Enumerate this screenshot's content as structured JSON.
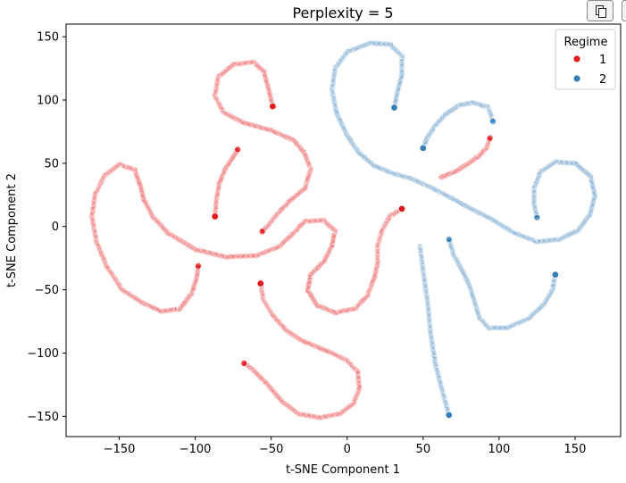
{
  "colors": {
    "regime_1": "#e41a1c",
    "regime_2": "#377eb8",
    "marker_edge": "#ffffff",
    "axis": "#000000"
  },
  "toolbar": {
    "copy_icon": "copy-icon",
    "more_icon": "more-button"
  },
  "chart_data": {
    "type": "scatter",
    "title": "Perplexity = 5",
    "xlabel": "t-SNE Component 1",
    "ylabel": "t-SNE Component 2",
    "xlim": [
      -185,
      180
    ],
    "ylim": [
      -166,
      160
    ],
    "xticks": [
      -150,
      -100,
      -50,
      0,
      50,
      100,
      150
    ],
    "yticks": [
      -150,
      -100,
      -50,
      0,
      50,
      100,
      150
    ],
    "xtick_labels": [
      "−150",
      "−100",
      "−50",
      "0",
      "50",
      "100",
      "150"
    ],
    "ytick_labels": [
      "−150",
      "−100",
      "−50",
      "0",
      "50",
      "100",
      "150"
    ],
    "grid": false,
    "legend": {
      "title": "Regime",
      "position": "top-right",
      "entries": [
        "1",
        "2"
      ]
    },
    "series": [
      {
        "name": "1",
        "color": "#e41a1c",
        "curves": [
          {
            "points": [
              [
                -57,
                -45
              ],
              [
                -55,
                -58
              ],
              [
                -49,
                -70
              ],
              [
                -40,
                -82
              ],
              [
                -30,
                -90
              ],
              [
                -20,
                -95
              ],
              [
                -10,
                -100
              ],
              [
                0,
                -106
              ],
              [
                7,
                -115
              ],
              [
                8,
                -128
              ],
              [
                4,
                -140
              ],
              [
                -5,
                -148
              ],
              [
                -18,
                -151
              ],
              [
                -32,
                -148
              ],
              [
                -43,
                -138
              ],
              [
                -53,
                -124
              ],
              [
                -63,
                -112
              ],
              [
                -68,
                -108
              ]
            ],
            "highlight": [
              -57,
              -45
            ]
          },
          {
            "points": [
              [
                36,
                14
              ],
              [
                28,
                8
              ],
              [
                23,
                -3
              ],
              [
                20,
                -15
              ],
              [
                20,
                -29
              ],
              [
                18,
                -40
              ],
              [
                13,
                -55
              ],
              [
                5,
                -65
              ],
              [
                -8,
                -68
              ],
              [
                -20,
                -62
              ],
              [
                -26,
                -50
              ],
              [
                -24,
                -38
              ],
              [
                -15,
                -27
              ],
              [
                -10,
                -15
              ],
              [
                -8,
                -3
              ],
              [
                -16,
                5
              ],
              [
                -28,
                4
              ],
              [
                -36,
                -6
              ],
              [
                -45,
                -16
              ],
              [
                -60,
                -23
              ],
              [
                -80,
                -24
              ],
              [
                -100,
                -18
              ],
              [
                -118,
                -5
              ],
              [
                -128,
                8
              ],
              [
                -134,
                22
              ],
              [
                -136,
                32
              ],
              [
                -140,
                45
              ],
              [
                -150,
                49
              ],
              [
                -160,
                40
              ],
              [
                -166,
                25
              ],
              [
                -168,
                8
              ],
              [
                -165,
                -12
              ],
              [
                -158,
                -32
              ],
              [
                -148,
                -50
              ],
              [
                -135,
                -60
              ],
              [
                -122,
                -67
              ],
              [
                -110,
                -65
              ],
              [
                -102,
                -52
              ],
              [
                -99,
                -40
              ],
              [
                -98,
                -31
              ]
            ],
            "highlight": [
              36,
              14
            ]
          },
          {
            "points": [
              [
                -49,
                95
              ],
              [
                -52,
                110
              ],
              [
                -55,
                123
              ],
              [
                -62,
                130
              ],
              [
                -75,
                128
              ],
              [
                -85,
                118
              ],
              [
                -87,
                103
              ],
              [
                -81,
                90
              ],
              [
                -68,
                82
              ],
              [
                -50,
                76
              ],
              [
                -35,
                68
              ],
              [
                -28,
                58
              ],
              [
                -24,
                45
              ],
              [
                -28,
                30
              ],
              [
                -38,
                20
              ],
              [
                -46,
                10
              ],
              [
                -52,
                1
              ],
              [
                -56,
                -4
              ]
            ],
            "highlight": [
              -49,
              95
            ]
          },
          {
            "points": [
              [
                -87,
                8
              ],
              [
                -86,
                22
              ],
              [
                -84,
                35
              ],
              [
                -80,
                46
              ],
              [
                -75,
                55
              ],
              [
                -72,
                61
              ]
            ],
            "highlight": [
              -87,
              8
            ]
          },
          {
            "points": [
              [
                62,
                39
              ],
              [
                72,
                44
              ],
              [
                80,
                50
              ],
              [
                87,
                56
              ],
              [
                92,
                63
              ],
              [
                94,
                70
              ]
            ],
            "highlight": null
          }
        ]
      },
      {
        "name": "2",
        "color": "#377eb8",
        "curves": [
          {
            "points": [
              [
                31,
                94
              ],
              [
                33,
                106
              ],
              [
                36,
                120
              ],
              [
                36,
                135
              ],
              [
                28,
                144
              ],
              [
                15,
                145
              ],
              [
                0,
                138
              ],
              [
                -8,
                125
              ],
              [
                -10,
                108
              ],
              [
                -7,
                90
              ],
              [
                0,
                72
              ],
              [
                8,
                58
              ],
              [
                18,
                48
              ],
              [
                30,
                42
              ],
              [
                42,
                38
              ],
              [
                55,
                31
              ],
              [
                68,
                23
              ],
              [
                80,
                15
              ],
              [
                95,
                6
              ],
              [
                110,
                -5
              ],
              [
                125,
                -12
              ],
              [
                140,
                -10
              ],
              [
                152,
                -3
              ],
              [
                160,
                10
              ],
              [
                163,
                25
              ],
              [
                160,
                40
              ],
              [
                150,
                50
              ],
              [
                137,
                51
              ],
              [
                127,
                43
              ],
              [
                123,
                30
              ],
              [
                123,
                18
              ],
              [
                125,
                7
              ]
            ],
            "highlight": [
              31,
              94
            ]
          },
          {
            "points": [
              [
                50,
                62
              ],
              [
                53,
                71
              ],
              [
                58,
                80
              ],
              [
                65,
                89
              ],
              [
                74,
                96
              ],
              [
                83,
                98
              ],
              [
                93,
                94
              ],
              [
                96,
                83
              ]
            ],
            "highlight": [
              50,
              62
            ]
          },
          {
            "points": [
              [
                137,
                -38
              ],
              [
                135,
                -50
              ],
              [
                129,
                -62
              ],
              [
                119,
                -73
              ],
              [
                105,
                -80
              ],
              [
                93,
                -80
              ],
              [
                87,
                -72
              ],
              [
                84,
                -60
              ],
              [
                80,
                -45
              ],
              [
                75,
                -33
              ],
              [
                70,
                -22
              ],
              [
                67,
                -10
              ]
            ],
            "highlight": [
              137,
              -38
            ]
          },
          {
            "points": [
              [
                48,
                -16
              ],
              [
                50,
                -35
              ],
              [
                53,
                -60
              ],
              [
                55,
                -85
              ],
              [
                58,
                -108
              ],
              [
                62,
                -127
              ],
              [
                65,
                -140
              ],
              [
                67,
                -149
              ]
            ],
            "highlight": [
              67,
              -149
            ]
          }
        ]
      }
    ]
  }
}
